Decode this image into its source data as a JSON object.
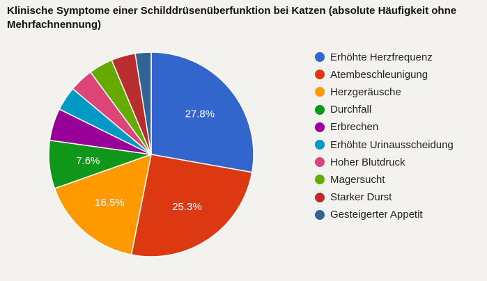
{
  "chart_data": {
    "type": "pie",
    "title": "Klinische Symptome einer Schilddrüsenüberfunktion bei Katzen (absolute Häufigkeit ohne Mehrfachnennung)",
    "legend_position": "right",
    "slices": [
      {
        "label": "Erhöhte Herzfrequenz",
        "value": 27.8,
        "color": "#3366cc",
        "data_label": "27.8%"
      },
      {
        "label": "Atembeschleunigung",
        "value": 25.3,
        "color": "#dc3912",
        "data_label": "25.3%"
      },
      {
        "label": "Herzgeräusche",
        "value": 16.5,
        "color": "#ff9900",
        "data_label": "16.5%"
      },
      {
        "label": "Durchfall",
        "value": 7.6,
        "color": "#109618",
        "data_label": "7.6%"
      },
      {
        "label": "Erbrechen",
        "value": 5.1,
        "color": "#990099",
        "data_label": ""
      },
      {
        "label": "Erhöhte Urinausscheidung",
        "value": 3.8,
        "color": "#0099c6",
        "data_label": ""
      },
      {
        "label": "Hoher Blutdruck",
        "value": 3.8,
        "color": "#dd4477",
        "data_label": ""
      },
      {
        "label": "Magersucht",
        "value": 3.8,
        "color": "#66aa00",
        "data_label": ""
      },
      {
        "label": "Starker Durst",
        "value": 3.8,
        "color": "#b82e2e",
        "data_label": ""
      },
      {
        "label": "Gesteigerter Appetit",
        "value": 2.5,
        "color": "#316395",
        "data_label": ""
      }
    ]
  }
}
